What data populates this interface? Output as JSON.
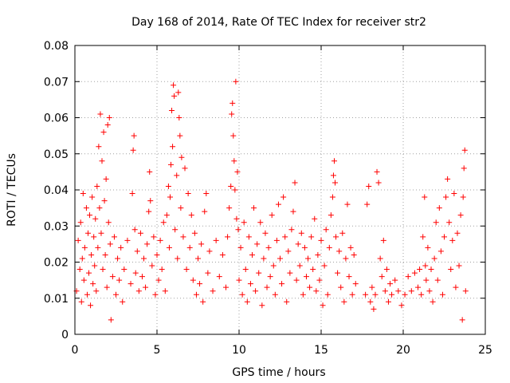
{
  "chart_data": {
    "type": "scatter",
    "title": "Day 168 of 2014, Rate Of TEC Index for receiver str2",
    "xlabel": "GPS time / hours",
    "ylabel": "ROTI / TECUs",
    "xlim": [
      0,
      25
    ],
    "ylim": [
      0,
      0.08
    ],
    "xticks": [
      0,
      5,
      10,
      15,
      20,
      25
    ],
    "yticks": [
      0,
      0.01,
      0.02,
      0.03,
      0.04,
      0.05,
      0.06,
      0.07,
      0.08
    ],
    "xtick_labels": [
      "0",
      "5",
      "10",
      "15",
      "20",
      "25"
    ],
    "ytick_labels": [
      "0",
      "0.01",
      "0.02",
      "0.03",
      "0.04",
      "0.05",
      "0.06",
      "0.07",
      "0.08"
    ],
    "grid": true,
    "marker": "plus",
    "marker_color": "#ff0000",
    "series": [
      {
        "name": "ROTI",
        "points": [
          [
            0.1,
            0.012
          ],
          [
            0.2,
            0.026
          ],
          [
            0.3,
            0.018
          ],
          [
            0.35,
            0.031
          ],
          [
            0.4,
            0.009
          ],
          [
            0.45,
            0.021
          ],
          [
            0.5,
            0.039
          ],
          [
            0.55,
            0.015
          ],
          [
            0.6,
            0.024
          ],
          [
            0.7,
            0.035
          ],
          [
            0.75,
            0.011
          ],
          [
            0.8,
            0.028
          ],
          [
            0.85,
            0.017
          ],
          [
            0.9,
            0.033
          ],
          [
            0.95,
            0.008
          ],
          [
            1.0,
            0.022
          ],
          [
            1.05,
            0.038
          ],
          [
            1.1,
            0.014
          ],
          [
            1.15,
            0.027
          ],
          [
            1.2,
            0.019
          ],
          [
            1.25,
            0.032
          ],
          [
            1.3,
            0.012
          ],
          [
            1.35,
            0.041
          ],
          [
            1.4,
            0.024
          ],
          [
            1.45,
            0.052
          ],
          [
            1.5,
            0.035
          ],
          [
            1.55,
            0.061
          ],
          [
            1.6,
            0.028
          ],
          [
            1.65,
            0.048
          ],
          [
            1.7,
            0.018
          ],
          [
            1.75,
            0.056
          ],
          [
            1.8,
            0.037
          ],
          [
            1.85,
            0.022
          ],
          [
            1.9,
            0.043
          ],
          [
            1.95,
            0.013
          ],
          [
            2.0,
            0.058
          ],
          [
            2.05,
            0.031
          ],
          [
            2.1,
            0.06
          ],
          [
            2.15,
            0.025
          ],
          [
            2.2,
            0.004
          ],
          [
            2.3,
            0.016
          ],
          [
            2.4,
            0.027
          ],
          [
            2.5,
            0.011
          ],
          [
            2.6,
            0.021
          ],
          [
            2.7,
            0.015
          ],
          [
            2.8,
            0.024
          ],
          [
            2.9,
            0.009
          ],
          [
            3.0,
            0.018
          ],
          [
            3.2,
            0.026
          ],
          [
            3.4,
            0.014
          ],
          [
            3.5,
            0.039
          ],
          [
            3.55,
            0.051
          ],
          [
            3.6,
            0.055
          ],
          [
            3.65,
            0.029
          ],
          [
            3.7,
            0.017
          ],
          [
            3.8,
            0.023
          ],
          [
            3.9,
            0.012
          ],
          [
            4.0,
            0.028
          ],
          [
            4.1,
            0.016
          ],
          [
            4.2,
            0.021
          ],
          [
            4.3,
            0.013
          ],
          [
            4.4,
            0.025
          ],
          [
            4.5,
            0.034
          ],
          [
            4.55,
            0.045
          ],
          [
            4.6,
            0.037
          ],
          [
            4.7,
            0.019
          ],
          [
            4.8,
            0.027
          ],
          [
            4.9,
            0.011
          ],
          [
            5.0,
            0.022
          ],
          [
            5.1,
            0.015
          ],
          [
            5.2,
            0.026
          ],
          [
            5.3,
            0.018
          ],
          [
            5.4,
            0.031
          ],
          [
            5.5,
            0.012
          ],
          [
            5.6,
            0.033
          ],
          [
            5.7,
            0.041
          ],
          [
            5.75,
            0.024
          ],
          [
            5.8,
            0.038
          ],
          [
            5.85,
            0.047
          ],
          [
            5.9,
            0.062
          ],
          [
            5.95,
            0.052
          ],
          [
            6.0,
            0.069
          ],
          [
            6.05,
            0.066
          ],
          [
            6.1,
            0.029
          ],
          [
            6.2,
            0.044
          ],
          [
            6.25,
            0.021
          ],
          [
            6.3,
            0.067
          ],
          [
            6.35,
            0.06
          ],
          [
            6.4,
            0.055
          ],
          [
            6.45,
            0.035
          ],
          [
            6.5,
            0.049
          ],
          [
            6.6,
            0.027
          ],
          [
            6.7,
            0.046
          ],
          [
            6.8,
            0.018
          ],
          [
            6.9,
            0.039
          ],
          [
            7.0,
            0.024
          ],
          [
            7.1,
            0.033
          ],
          [
            7.2,
            0.015
          ],
          [
            7.3,
            0.028
          ],
          [
            7.4,
            0.011
          ],
          [
            7.5,
            0.021
          ],
          [
            7.6,
            0.014
          ],
          [
            7.7,
            0.025
          ],
          [
            7.8,
            0.009
          ],
          [
            7.9,
            0.034
          ],
          [
            8.0,
            0.039
          ],
          [
            8.1,
            0.017
          ],
          [
            8.2,
            0.023
          ],
          [
            8.4,
            0.012
          ],
          [
            8.6,
            0.026
          ],
          [
            8.8,
            0.016
          ],
          [
            9.0,
            0.022
          ],
          [
            9.2,
            0.013
          ],
          [
            9.3,
            0.027
          ],
          [
            9.4,
            0.035
          ],
          [
            9.5,
            0.041
          ],
          [
            9.55,
            0.061
          ],
          [
            9.6,
            0.064
          ],
          [
            9.65,
            0.055
          ],
          [
            9.7,
            0.048
          ],
          [
            9.75,
            0.04
          ],
          [
            9.8,
            0.07
          ],
          [
            9.85,
            0.032
          ],
          [
            9.9,
            0.045
          ],
          [
            9.95,
            0.029
          ],
          [
            10.0,
            0.015
          ],
          [
            10.1,
            0.024
          ],
          [
            10.2,
            0.011
          ],
          [
            10.3,
            0.031
          ],
          [
            10.4,
            0.018
          ],
          [
            10.5,
            0.009
          ],
          [
            10.6,
            0.027
          ],
          [
            10.7,
            0.014
          ],
          [
            10.8,
            0.022
          ],
          [
            10.9,
            0.035
          ],
          [
            11.0,
            0.012
          ],
          [
            11.1,
            0.025
          ],
          [
            11.2,
            0.017
          ],
          [
            11.3,
            0.031
          ],
          [
            11.4,
            0.008
          ],
          [
            11.5,
            0.021
          ],
          [
            11.6,
            0.028
          ],
          [
            11.7,
            0.013
          ],
          [
            11.8,
            0.024
          ],
          [
            11.9,
            0.016
          ],
          [
            12.0,
            0.033
          ],
          [
            12.1,
            0.019
          ],
          [
            12.2,
            0.011
          ],
          [
            12.3,
            0.026
          ],
          [
            12.4,
            0.036
          ],
          [
            12.5,
            0.021
          ],
          [
            12.6,
            0.014
          ],
          [
            12.7,
            0.038
          ],
          [
            12.8,
            0.027
          ],
          [
            12.9,
            0.009
          ],
          [
            13.0,
            0.023
          ],
          [
            13.1,
            0.017
          ],
          [
            13.2,
            0.029
          ],
          [
            13.3,
            0.034
          ],
          [
            13.4,
            0.042
          ],
          [
            13.5,
            0.015
          ],
          [
            13.6,
            0.025
          ],
          [
            13.7,
            0.019
          ],
          [
            13.8,
            0.028
          ],
          [
            13.9,
            0.011
          ],
          [
            14.0,
            0.024
          ],
          [
            14.1,
            0.016
          ],
          [
            14.2,
            0.021
          ],
          [
            14.3,
            0.013
          ],
          [
            14.4,
            0.027
          ],
          [
            14.5,
            0.018
          ],
          [
            14.6,
            0.032
          ],
          [
            14.7,
            0.012
          ],
          [
            14.8,
            0.022
          ],
          [
            14.9,
            0.015
          ],
          [
            15.0,
            0.026
          ],
          [
            15.1,
            0.008
          ],
          [
            15.2,
            0.019
          ],
          [
            15.3,
            0.029
          ],
          [
            15.4,
            0.011
          ],
          [
            15.5,
            0.024
          ],
          [
            15.6,
            0.033
          ],
          [
            15.7,
            0.038
          ],
          [
            15.75,
            0.044
          ],
          [
            15.8,
            0.048
          ],
          [
            15.85,
            0.042
          ],
          [
            15.9,
            0.027
          ],
          [
            16.0,
            0.017
          ],
          [
            16.1,
            0.023
          ],
          [
            16.2,
            0.013
          ],
          [
            16.3,
            0.028
          ],
          [
            16.4,
            0.009
          ],
          [
            16.5,
            0.021
          ],
          [
            16.6,
            0.036
          ],
          [
            16.7,
            0.016
          ],
          [
            16.8,
            0.024
          ],
          [
            16.9,
            0.011
          ],
          [
            17.0,
            0.022
          ],
          [
            17.1,
            0.014
          ],
          [
            17.7,
            0.011
          ],
          [
            17.8,
            0.036
          ],
          [
            17.9,
            0.041
          ],
          [
            18.0,
            0.009
          ],
          [
            18.1,
            0.013
          ],
          [
            18.2,
            0.007
          ],
          [
            18.3,
            0.011
          ],
          [
            18.4,
            0.045
          ],
          [
            18.5,
            0.042
          ],
          [
            18.6,
            0.021
          ],
          [
            18.7,
            0.016
          ],
          [
            18.8,
            0.026
          ],
          [
            18.9,
            0.012
          ],
          [
            19.0,
            0.018
          ],
          [
            19.1,
            0.009
          ],
          [
            19.2,
            0.014
          ],
          [
            19.3,
            0.011
          ],
          [
            19.5,
            0.015
          ],
          [
            19.7,
            0.012
          ],
          [
            19.9,
            0.008
          ],
          [
            20.1,
            0.011
          ],
          [
            20.3,
            0.016
          ],
          [
            20.5,
            0.012
          ],
          [
            20.7,
            0.017
          ],
          [
            20.9,
            0.013
          ],
          [
            21.0,
            0.018
          ],
          [
            21.1,
            0.011
          ],
          [
            21.2,
            0.027
          ],
          [
            21.3,
            0.038
          ],
          [
            21.35,
            0.019
          ],
          [
            21.4,
            0.015
          ],
          [
            21.5,
            0.024
          ],
          [
            21.6,
            0.012
          ],
          [
            21.7,
            0.018
          ],
          [
            21.8,
            0.009
          ],
          [
            21.9,
            0.021
          ],
          [
            22.0,
            0.031
          ],
          [
            22.1,
            0.015
          ],
          [
            22.2,
            0.035
          ],
          [
            22.3,
            0.023
          ],
          [
            22.4,
            0.011
          ],
          [
            22.5,
            0.027
          ],
          [
            22.6,
            0.038
          ],
          [
            22.7,
            0.043
          ],
          [
            22.8,
            0.031
          ],
          [
            22.9,
            0.018
          ],
          [
            23.0,
            0.026
          ],
          [
            23.1,
            0.039
          ],
          [
            23.2,
            0.013
          ],
          [
            23.3,
            0.028
          ],
          [
            23.4,
            0.019
          ],
          [
            23.5,
            0.033
          ],
          [
            23.6,
            0.004
          ],
          [
            23.65,
            0.038
          ],
          [
            23.7,
            0.046
          ],
          [
            23.75,
            0.051
          ],
          [
            23.8,
            0.012
          ]
        ]
      }
    ]
  }
}
